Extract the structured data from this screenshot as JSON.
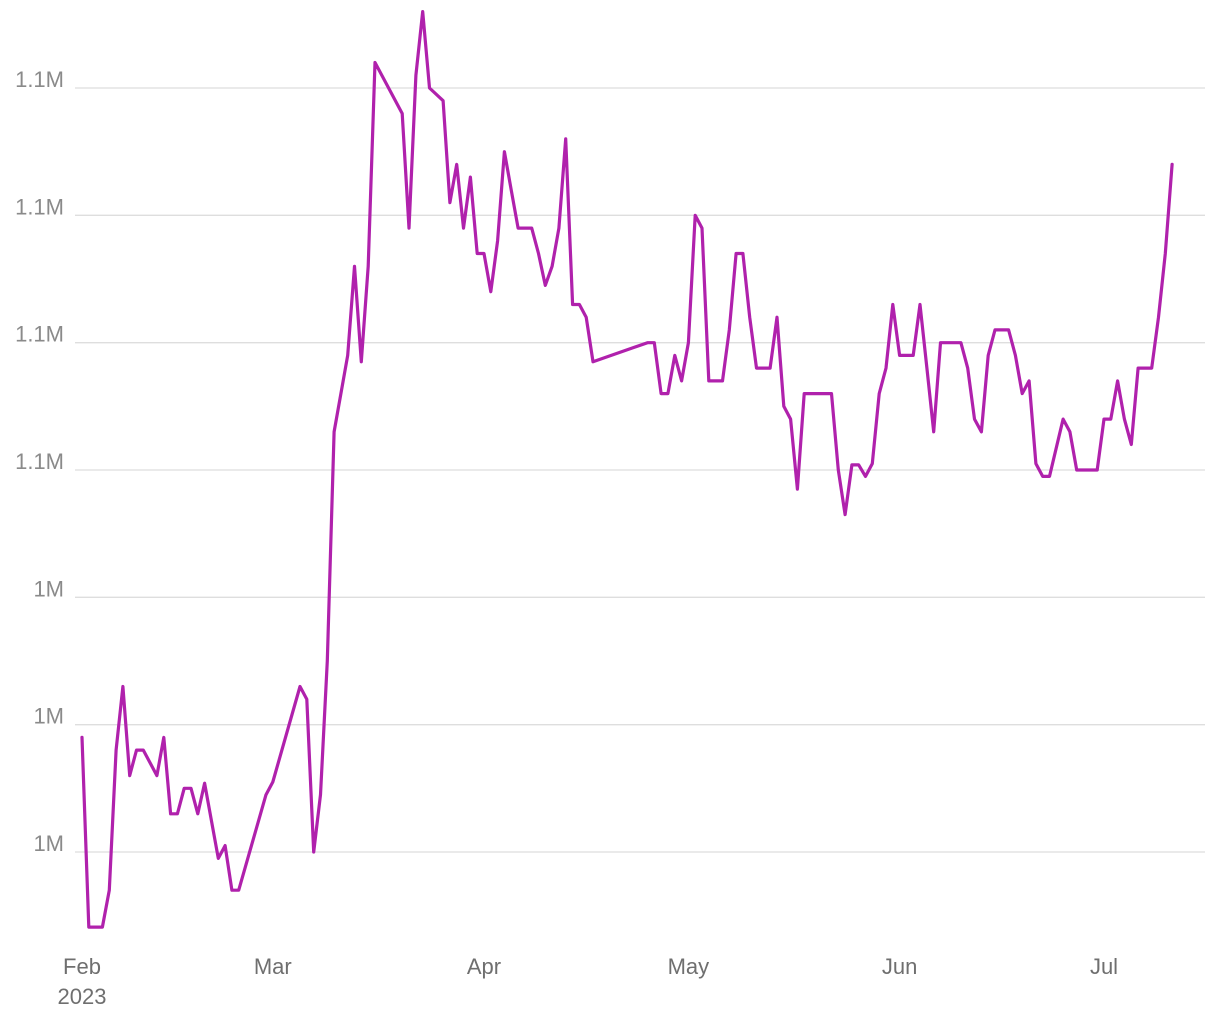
{
  "chart_data": {
    "type": "line",
    "title": "",
    "xlabel": "",
    "ylabel": "",
    "grid": true,
    "legend": "none",
    "x_axis": {
      "type": "date",
      "range": [
        "2023-01-31",
        "2023-07-18"
      ],
      "ticks": [
        {
          "date": "2023-02-01",
          "label": "Feb",
          "sublabel": "2023"
        },
        {
          "date": "2023-03-01",
          "label": "Mar",
          "sublabel": ""
        },
        {
          "date": "2023-04-01",
          "label": "Apr",
          "sublabel": ""
        },
        {
          "date": "2023-05-01",
          "label": "May",
          "sublabel": ""
        },
        {
          "date": "2023-06-01",
          "label": "Jun",
          "sublabel": ""
        },
        {
          "date": "2023-07-01",
          "label": "Jul",
          "sublabel": ""
        }
      ]
    },
    "y_axis": {
      "range": [
        1.03,
        1.112
      ],
      "ticks": [
        {
          "value": 1.044,
          "label": "1M"
        },
        {
          "value": 1.054,
          "label": "1M"
        },
        {
          "value": 1.064,
          "label": "1M"
        },
        {
          "value": 1.074,
          "label": "1.1M"
        },
        {
          "value": 1.084,
          "label": "1.1M"
        },
        {
          "value": 1.094,
          "label": "1.1M"
        },
        {
          "value": 1.104,
          "label": "1.1M"
        }
      ]
    },
    "series": [
      {
        "name": "",
        "color": "#b021ac",
        "points": [
          [
            "2023-02-01",
            1.053
          ],
          [
            "2023-02-02",
            1.0381
          ],
          [
            "2023-02-03",
            1.0381
          ],
          [
            "2023-02-04",
            1.0381
          ],
          [
            "2023-02-05",
            1.041
          ],
          [
            "2023-02-06",
            1.052
          ],
          [
            "2023-02-07",
            1.057
          ],
          [
            "2023-02-08",
            1.05
          ],
          [
            "2023-02-09",
            1.052
          ],
          [
            "2023-02-10",
            1.052
          ],
          [
            "2023-02-12",
            1.05
          ],
          [
            "2023-02-13",
            1.053
          ],
          [
            "2023-02-14",
            1.047
          ],
          [
            "2023-02-15",
            1.047
          ],
          [
            "2023-02-16",
            1.049
          ],
          [
            "2023-02-17",
            1.049
          ],
          [
            "2023-02-18",
            1.047
          ],
          [
            "2023-02-19",
            1.0494
          ],
          [
            "2023-02-21",
            1.0435
          ],
          [
            "2023-02-22",
            1.0445
          ],
          [
            "2023-02-23",
            1.041
          ],
          [
            "2023-02-24",
            1.041
          ],
          [
            "2023-02-28",
            1.0485
          ],
          [
            "2023-03-01",
            1.0495
          ],
          [
            "2023-03-05",
            1.057
          ],
          [
            "2023-03-06",
            1.056
          ],
          [
            "2023-03-07",
            1.044
          ],
          [
            "2023-03-08",
            1.0485
          ],
          [
            "2023-03-09",
            1.059
          ],
          [
            "2023-03-10",
            1.077
          ],
          [
            "2023-03-12",
            1.083
          ],
          [
            "2023-03-13",
            1.09
          ],
          [
            "2023-03-14",
            1.0825
          ],
          [
            "2023-03-15",
            1.09
          ],
          [
            "2023-03-16",
            1.106
          ],
          [
            "2023-03-20",
            1.102
          ],
          [
            "2023-03-21",
            1.093
          ],
          [
            "2023-03-22",
            1.105
          ],
          [
            "2023-03-23",
            1.11
          ],
          [
            "2023-03-24",
            1.104
          ],
          [
            "2023-03-26",
            1.103
          ],
          [
            "2023-03-27",
            1.095
          ],
          [
            "2023-03-28",
            1.098
          ],
          [
            "2023-03-29",
            1.093
          ],
          [
            "2023-03-30",
            1.097
          ],
          [
            "2023-03-31",
            1.091
          ],
          [
            "2023-04-01",
            1.091
          ],
          [
            "2023-04-02",
            1.088
          ],
          [
            "2023-04-03",
            1.092
          ],
          [
            "2023-04-04",
            1.099
          ],
          [
            "2023-04-05",
            1.096
          ],
          [
            "2023-04-06",
            1.093
          ],
          [
            "2023-04-08",
            1.093
          ],
          [
            "2023-04-09",
            1.091
          ],
          [
            "2023-04-10",
            1.0885
          ],
          [
            "2023-04-11",
            1.09
          ],
          [
            "2023-04-12",
            1.093
          ],
          [
            "2023-04-13",
            1.1
          ],
          [
            "2023-04-14",
            1.087
          ],
          [
            "2023-04-15",
            1.087
          ],
          [
            "2023-04-16",
            1.086
          ],
          [
            "2023-04-17",
            1.0825
          ],
          [
            "2023-04-25",
            1.084
          ],
          [
            "2023-04-26",
            1.084
          ],
          [
            "2023-04-27",
            1.08
          ],
          [
            "2023-04-28",
            1.08
          ],
          [
            "2023-04-29",
            1.083
          ],
          [
            "2023-04-30",
            1.081
          ],
          [
            "2023-05-01",
            1.084
          ],
          [
            "2023-05-02",
            1.094
          ],
          [
            "2023-05-03",
            1.093
          ],
          [
            "2023-05-04",
            1.081
          ],
          [
            "2023-05-05",
            1.081
          ],
          [
            "2023-05-06",
            1.081
          ],
          [
            "2023-05-07",
            1.085
          ],
          [
            "2023-05-08",
            1.091
          ],
          [
            "2023-05-09",
            1.091
          ],
          [
            "2023-05-10",
            1.086
          ],
          [
            "2023-05-11",
            1.082
          ],
          [
            "2023-05-12",
            1.082
          ],
          [
            "2023-05-13",
            1.082
          ],
          [
            "2023-05-14",
            1.086
          ],
          [
            "2023-05-15",
            1.079
          ],
          [
            "2023-05-16",
            1.078
          ],
          [
            "2023-05-17",
            1.0725
          ],
          [
            "2023-05-18",
            1.08
          ],
          [
            "2023-05-19",
            1.08
          ],
          [
            "2023-05-22",
            1.08
          ],
          [
            "2023-05-23",
            1.074
          ],
          [
            "2023-05-24",
            1.0705
          ],
          [
            "2023-05-25",
            1.0744
          ],
          [
            "2023-05-26",
            1.0744
          ],
          [
            "2023-05-27",
            1.0735
          ],
          [
            "2023-05-28",
            1.0745
          ],
          [
            "2023-05-29",
            1.08
          ],
          [
            "2023-05-30",
            1.082
          ],
          [
            "2023-05-31",
            1.087
          ],
          [
            "2023-06-01",
            1.083
          ],
          [
            "2023-06-03",
            1.083
          ],
          [
            "2023-06-04",
            1.087
          ],
          [
            "2023-06-05",
            1.082
          ],
          [
            "2023-06-06",
            1.077
          ],
          [
            "2023-06-07",
            1.084
          ],
          [
            "2023-06-10",
            1.084
          ],
          [
            "2023-06-11",
            1.082
          ],
          [
            "2023-06-12",
            1.078
          ],
          [
            "2023-06-13",
            1.077
          ],
          [
            "2023-06-14",
            1.083
          ],
          [
            "2023-06-15",
            1.085
          ],
          [
            "2023-06-17",
            1.085
          ],
          [
            "2023-06-18",
            1.083
          ],
          [
            "2023-06-19",
            1.08
          ],
          [
            "2023-06-20",
            1.081
          ],
          [
            "2023-06-21",
            1.0745
          ],
          [
            "2023-06-22",
            1.0735
          ],
          [
            "2023-06-23",
            1.0735
          ],
          [
            "2023-06-25",
            1.078
          ],
          [
            "2023-06-26",
            1.077
          ],
          [
            "2023-06-27",
            1.074
          ],
          [
            "2023-06-30",
            1.074
          ],
          [
            "2023-07-01",
            1.078
          ],
          [
            "2023-07-02",
            1.078
          ],
          [
            "2023-07-03",
            1.081
          ],
          [
            "2023-07-04",
            1.078
          ],
          [
            "2023-07-05",
            1.076
          ],
          [
            "2023-07-06",
            1.082
          ],
          [
            "2023-07-08",
            1.082
          ],
          [
            "2023-07-09",
            1.086
          ],
          [
            "2023-07-10",
            1.091
          ],
          [
            "2023-07-11",
            1.098
          ]
        ]
      }
    ]
  }
}
